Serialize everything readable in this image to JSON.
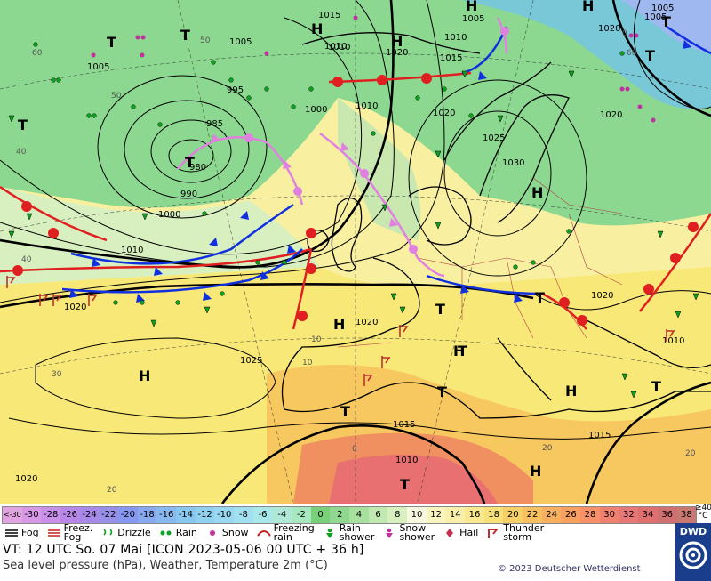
{
  "map": {
    "highs": [
      "H",
      "H",
      "H",
      "H",
      "H",
      "H",
      "H",
      "H",
      "H",
      "H"
    ],
    "lows": [
      "T",
      "T",
      "T",
      "T",
      "T",
      "T",
      "T",
      "T",
      "T",
      "T",
      "T",
      "T",
      "T"
    ],
    "isobar_labels": [
      "1015",
      "1005",
      "1005",
      "1005",
      "995",
      "985",
      "980",
      "990",
      "1000",
      "1010",
      "1020",
      "1010",
      "1000",
      "1010",
      "1020",
      "1025",
      "1030",
      "1020",
      "1020",
      "1010",
      "1015",
      "1010",
      "1020",
      "1025",
      "1020",
      "1015",
      "1010",
      "1020",
      "1005",
      "1005",
      "1015",
      "1020",
      "1010"
    ],
    "isotherm_labels": [
      "60",
      "50",
      "40",
      "40",
      "30",
      "20",
      "10",
      "0",
      "20",
      "20",
      "10",
      "0",
      "50",
      "60"
    ]
  },
  "scale": {
    "cells": [
      {
        "label": "<-30",
        "color": "#e0a4e0"
      },
      {
        "label": "-30",
        "color": "#d898e8"
      },
      {
        "label": "-28",
        "color": "#c890e8"
      },
      {
        "label": "-26",
        "color": "#b888e8"
      },
      {
        "label": "-24",
        "color": "#a888e8"
      },
      {
        "label": "-22",
        "color": "#9890e8"
      },
      {
        "label": "-20",
        "color": "#8898f0"
      },
      {
        "label": "-18",
        "color": "#88a8f0"
      },
      {
        "label": "-16",
        "color": "#88b8f0"
      },
      {
        "label": "-14",
        "color": "#88c8f0"
      },
      {
        "label": "-12",
        "color": "#90d0f0"
      },
      {
        "label": "-10",
        "color": "#98d8f0"
      },
      {
        "label": "-8",
        "color": "#a0e0f0"
      },
      {
        "label": "-6",
        "color": "#a8e8e8"
      },
      {
        "label": "-4",
        "color": "#b0e8d8"
      },
      {
        "label": "-2",
        "color": "#a8e8c0"
      },
      {
        "label": "0",
        "color": "#78d078"
      },
      {
        "label": "2",
        "color": "#90d890"
      },
      {
        "label": "4",
        "color": "#a8e0a0"
      },
      {
        "label": "6",
        "color": "#c0e8b0"
      },
      {
        "label": "8",
        "color": "#d8f0c0"
      },
      {
        "label": "10",
        "color": "#f8f8e0"
      },
      {
        "label": "12",
        "color": "#f8f4c0"
      },
      {
        "label": "14",
        "color": "#f8f0a8"
      },
      {
        "label": "16",
        "color": "#f8e890"
      },
      {
        "label": "18",
        "color": "#f8e078"
      },
      {
        "label": "20",
        "color": "#f8d068"
      },
      {
        "label": "22",
        "color": "#f8c060"
      },
      {
        "label": "24",
        "color": "#f8b060"
      },
      {
        "label": "26",
        "color": "#f8a060"
      },
      {
        "label": "28",
        "color": "#f89068"
      },
      {
        "label": "30",
        "color": "#f08070"
      },
      {
        "label": "32",
        "color": "#e87878"
      },
      {
        "label": "34",
        "color": "#e07070"
      },
      {
        "label": "36",
        "color": "#d07070"
      },
      {
        "label": "38",
        "color": "#c87870"
      }
    ],
    "unit_top": "≥40",
    "unit": "°C"
  },
  "legend": [
    {
      "label": "Fog",
      "icon": "fog-icon"
    },
    {
      "label": "Freez.\nFog",
      "icon": "freezing-fog-icon"
    },
    {
      "label": "Drizzle",
      "icon": "drizzle-icon"
    },
    {
      "label": "Rain",
      "icon": "rain-icon"
    },
    {
      "label": "Snow",
      "icon": "snow-icon"
    },
    {
      "label": "Freezing\nrain",
      "icon": "freezing-rain-icon"
    },
    {
      "label": "Rain\nshower",
      "icon": "rain-shower-icon"
    },
    {
      "label": "Snow\nshower",
      "icon": "snow-shower-icon"
    },
    {
      "label": "Hail",
      "icon": "hail-icon"
    },
    {
      "label": "Thunder\nstorm",
      "icon": "thunderstorm-icon"
    }
  ],
  "footer": {
    "valid_time": "VT: 12 UTC So.  07 Mai [ICON 2023-05-06  00 UTC + 36 h]",
    "subtitle": "Sea level pressure (hPa), Weather, Temperature 2m (°C)",
    "copyright": "© 2023 Deutscher Wetterdienst",
    "logo": "DWD"
  }
}
